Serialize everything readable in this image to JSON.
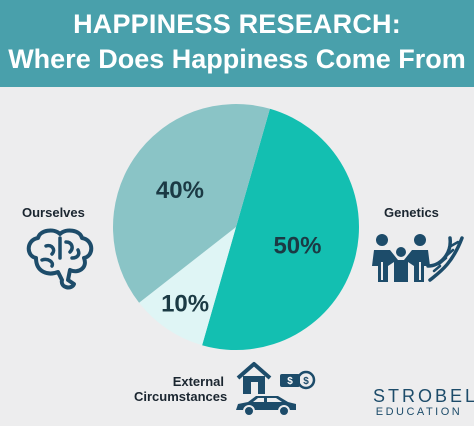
{
  "header": {
    "title_line1": "HAPPINESS RESEARCH:",
    "title_line2": "Where Does Happiness Come From"
  },
  "labels": {
    "ourselves": "Ourselves",
    "genetics": "Genetics",
    "external_line1": "External",
    "external_line2": "Circumstances"
  },
  "logo": {
    "line1": "STROBEL",
    "line2": "EDUCATION"
  },
  "colors": {
    "header_bg": "#49a0ab",
    "genetics": "#13bfb1",
    "ourselves": "#8ac4c6",
    "external": "#dff5f5",
    "icon": "#1d4c6a"
  },
  "icons": [
    "brain-icon",
    "family-icon",
    "dna-icon",
    "house-icon",
    "money-icon",
    "car-icon"
  ],
  "chart_data": {
    "type": "pie",
    "title": "HAPPINESS RESEARCH: Where Does Happiness Come From",
    "slices": [
      {
        "label": "Genetics",
        "value": 50,
        "text": "50%",
        "color": "#13bfb1"
      },
      {
        "label": "External Circumstances",
        "value": 10,
        "text": "10%",
        "color": "#dff5f5"
      },
      {
        "label": "Ourselves",
        "value": 40,
        "text": "40%",
        "color": "#8ac4c6"
      }
    ]
  }
}
